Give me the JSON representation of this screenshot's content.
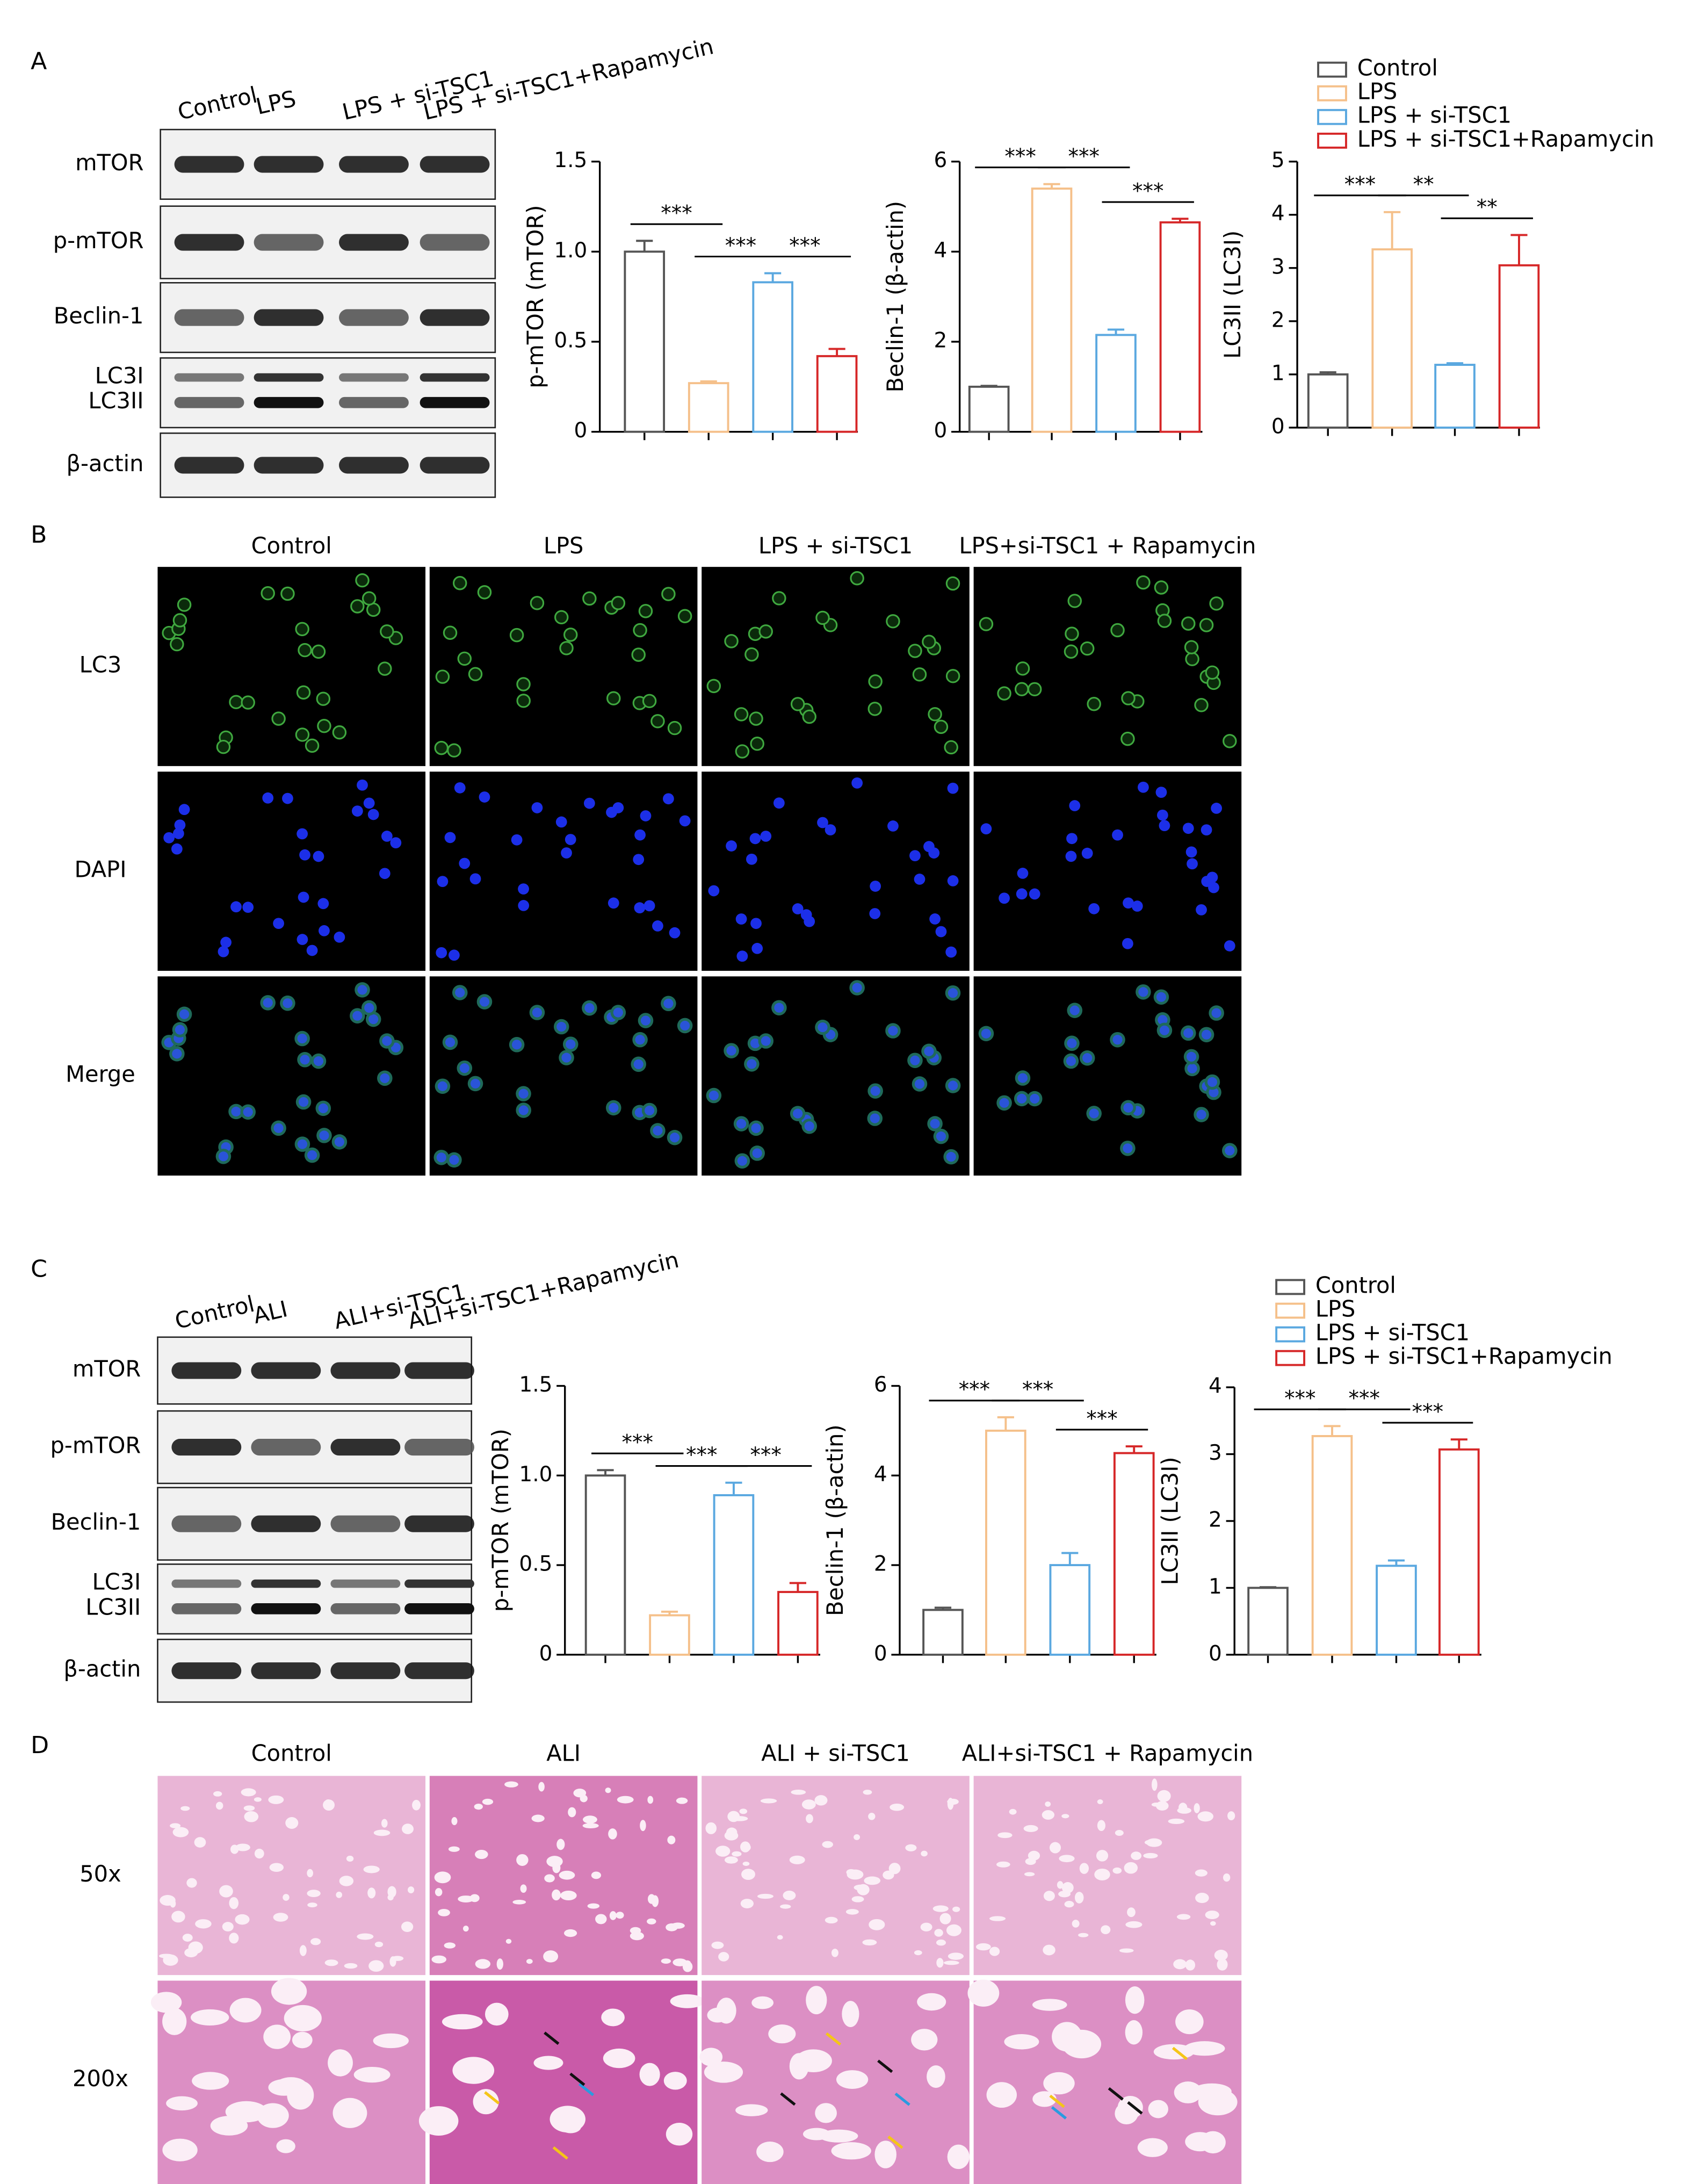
{
  "figure": {
    "panels": [
      "A",
      "B",
      "C",
      "D"
    ],
    "blot_a": {
      "columns": [
        "Control",
        "LPS",
        "LPS + si-TSC1",
        "LPS + si-TSC1+Rapamycin"
      ],
      "rows": [
        "mTOR",
        "p-mTOR",
        "Beclin-1",
        "LC3I",
        "LC3II",
        "β-actin"
      ]
    },
    "if_b": {
      "columns": [
        "Control",
        "LPS",
        "LPS + si-TSC1",
        "LPS+si-TSC1 + Rapamycin"
      ],
      "rows": [
        "LC3",
        "DAPI",
        "Merge"
      ]
    },
    "blot_c": {
      "columns": [
        "Control",
        "ALI",
        "ALI+si-TSC1",
        "ALI+si-TSC1+Rapamycin"
      ],
      "rows": [
        "mTOR",
        "p-mTOR",
        "Beclin-1",
        "LC3I",
        "LC3II",
        "β-actin"
      ]
    },
    "he_d": {
      "columns": [
        "Control",
        "ALI",
        "ALI + si-TSC1",
        "ALI+si-TSC1 + Rapamycin"
      ],
      "rows": [
        "50x",
        "200x"
      ]
    }
  },
  "chart_data": [
    {
      "type": "bar",
      "y_label": "p-mTOR (mTOR)",
      "categories": [
        null,
        null,
        null,
        null
      ],
      "values": [
        1.0,
        0.27,
        0.83,
        0.42
      ],
      "errors": [
        0.06,
        0.01,
        0.05,
        0.04
      ],
      "colors": [
        "#555555",
        "#f5c08a",
        "#5aa8e0",
        "#d62728"
      ],
      "ylim": [
        0,
        1.5
      ],
      "yticks": [
        0,
        0.5,
        {
          "value": 1,
          "label": "1.0"
        },
        1.5
      ],
      "annotations": [
        "***",
        "***",
        "***"
      ]
    },
    {
      "type": "bar",
      "y_label": "Beclin-1 (β-actin)",
      "categories": [
        null,
        null,
        null,
        null
      ],
      "values": [
        1.0,
        5.4,
        2.15,
        4.65
      ],
      "errors": [
        0.02,
        0.1,
        0.12,
        0.08
      ],
      "colors": [
        "#555555",
        "#f5c08a",
        "#5aa8e0",
        "#d62728"
      ],
      "ylim": [
        0,
        6
      ],
      "yticks": [
        0,
        2,
        4,
        6
      ],
      "annotations": [
        "***",
        "***",
        "***"
      ]
    },
    {
      "type": "bar",
      "y_label": "LC3II (LC3I)",
      "categories": [
        null,
        null,
        null,
        null
      ],
      "values": [
        1.0,
        3.35,
        1.18,
        3.05
      ],
      "errors": [
        0.04,
        0.7,
        0.03,
        0.57
      ],
      "colors": [
        "#555555",
        "#f5c08a",
        "#5aa8e0",
        "#d62728"
      ],
      "ylim": [
        0,
        5
      ],
      "yticks": [
        0,
        1,
        2,
        3,
        4,
        5
      ],
      "annotations": [
        "***",
        "**",
        "**"
      ],
      "legend": [
        "Control",
        "LPS",
        "LPS + si-TSC1",
        "LPS + si-TSC1+Rapamycin"
      ]
    },
    {
      "type": "bar",
      "y_label": "p-mTOR (mTOR)",
      "categories": [
        null,
        null,
        null,
        null
      ],
      "values": [
        1.0,
        0.22,
        0.89,
        0.35
      ],
      "errors": [
        0.03,
        0.02,
        0.07,
        0.05
      ],
      "colors": [
        "#555555",
        "#f5c08a",
        "#5aa8e0",
        "#d62728"
      ],
      "ylim": [
        0,
        1.5
      ],
      "yticks": [
        0,
        0.5,
        {
          "value": 1,
          "label": "1.0"
        },
        1.5
      ],
      "annotations": [
        "***",
        "***",
        "***"
      ]
    },
    {
      "type": "bar",
      "y_label": "Beclin-1 (β-actin)",
      "categories": [
        null,
        null,
        null,
        null
      ],
      "values": [
        1.0,
        5.0,
        2.0,
        4.5
      ],
      "errors": [
        0.05,
        0.3,
        0.27,
        0.15
      ],
      "colors": [
        "#555555",
        "#f5c08a",
        "#5aa8e0",
        "#d62728"
      ],
      "ylim": [
        0,
        6
      ],
      "yticks": [
        0,
        2,
        4,
        6
      ],
      "annotations": [
        "***",
        "***",
        "***"
      ]
    },
    {
      "type": "bar",
      "y_label": "LC3II (LC3I)",
      "categories": [
        null,
        null,
        null,
        null
      ],
      "values": [
        1.0,
        3.27,
        1.33,
        3.07
      ],
      "errors": [
        0.01,
        0.15,
        0.08,
        0.15
      ],
      "colors": [
        "#555555",
        "#f5c08a",
        "#5aa8e0",
        "#d62728"
      ],
      "ylim": [
        0,
        4
      ],
      "yticks": [
        0,
        1,
        2,
        3,
        4
      ],
      "annotations": [
        "***",
        "***",
        "***"
      ],
      "legend": [
        "Control",
        "LPS",
        "LPS + si-TSC1",
        "LPS + si-TSC1+Rapamycin"
      ]
    }
  ]
}
